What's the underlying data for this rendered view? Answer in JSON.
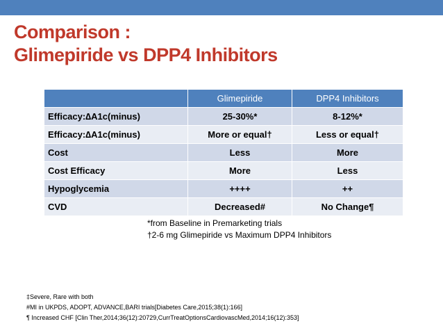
{
  "slide": {
    "title_line1": "Comparison :",
    "title_line2": "Glimepiride vs DPP4 Inhibitors"
  },
  "table": {
    "headers": [
      "",
      "Glimepiride",
      "DPP4 Inhibitors"
    ],
    "rows": [
      {
        "label": "Efficacy:∆A1c(minus)",
        "glimepiride": "25-30%*",
        "dpp4": "8-12%*"
      },
      {
        "label": "Efficacy:∆A1c(minus)",
        "glimepiride": "More or equal†",
        "dpp4": "Less or equal†"
      },
      {
        "label": "Cost",
        "glimepiride": "Less",
        "dpp4": "More"
      },
      {
        "label": "Cost Efficacy",
        "glimepiride": "More",
        "dpp4": "Less"
      },
      {
        "label": "Hypoglycemia",
        "glimepiride": "++++",
        "dpp4": "++"
      },
      {
        "label": "CVD",
        "glimepiride": "Decreased#",
        "dpp4": "No Change¶"
      }
    ]
  },
  "notes": [
    "*from Baseline  in Premarketing trials",
    "†2-6 mg Glimepiride  vs Maximum DPP4 Inhibitors"
  ],
  "references": [
    "‡Severe, Rare with both",
    "#MI in UKPDS, ADOPT, ADVANCE,BARI trials[Diabetes Care,2015;38(1):166]",
    "¶ Increased CHF [Clin Ther,2014;36(12):20729,CurrTreatOptionsCardiovascMed,2014;16(12):353]"
  ],
  "colors": {
    "accent": "#4f81bd",
    "title": "#c0392b",
    "row_odd": "#d0d8e8",
    "row_even": "#e9edf4"
  }
}
